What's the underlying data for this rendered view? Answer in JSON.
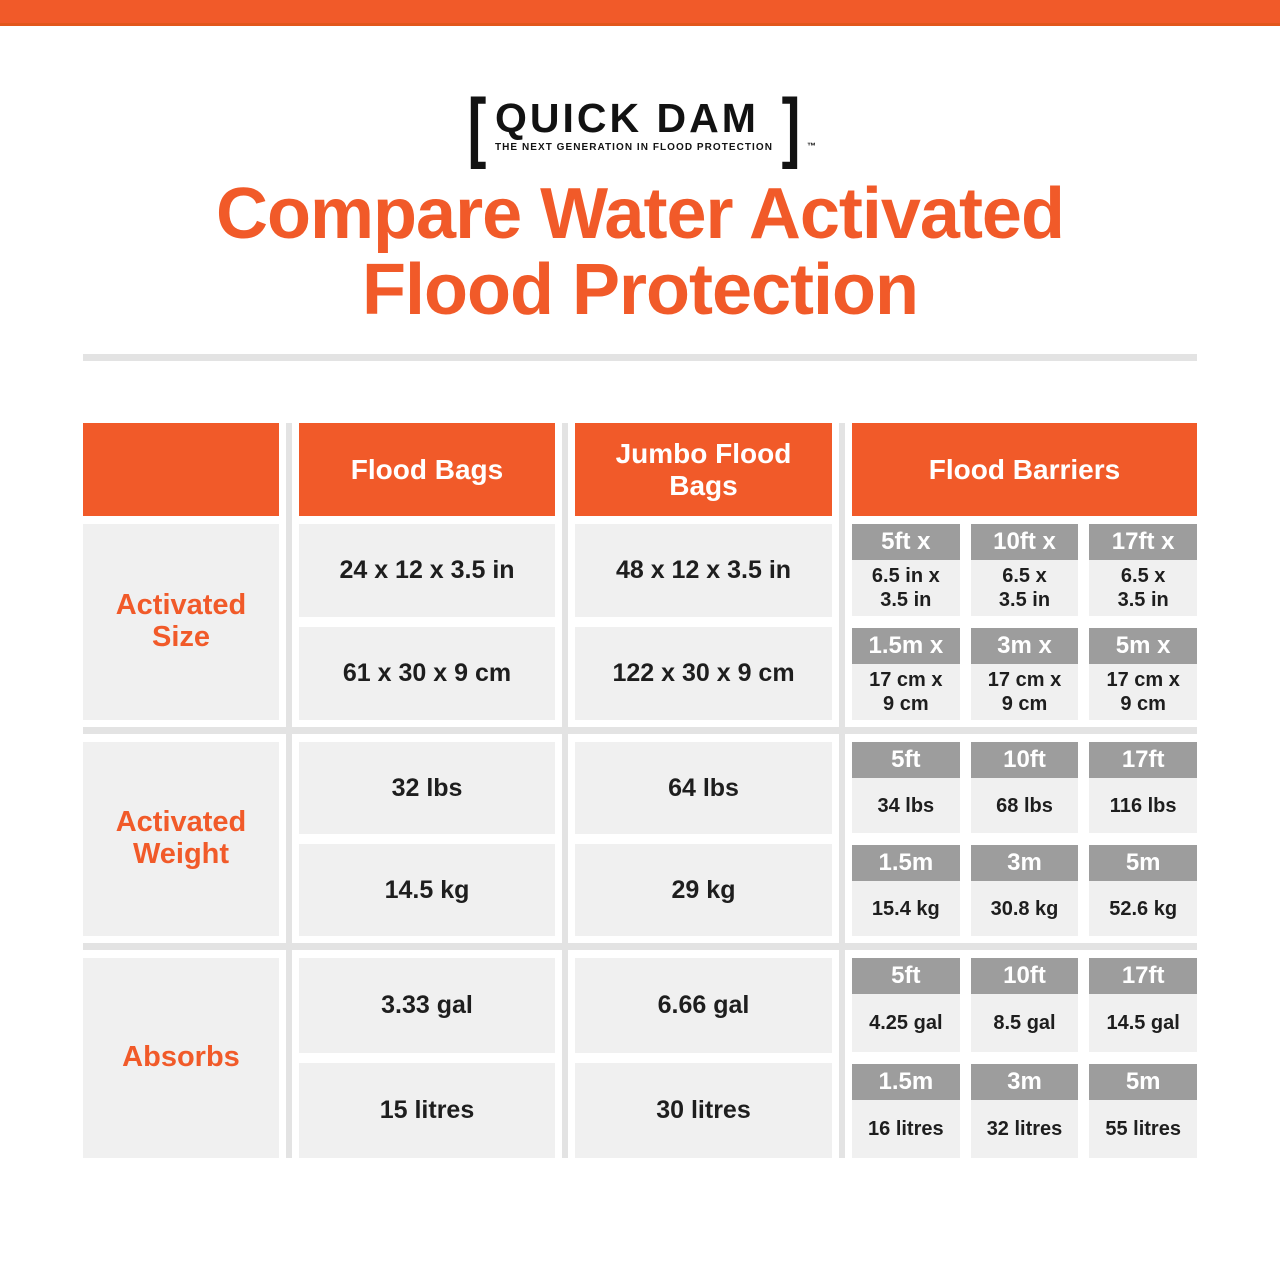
{
  "colors": {
    "orange": "#F15A29",
    "gray_header": "#9D9D9D",
    "cell_bg": "#F0F0F0",
    "divider": "#E3E3E3",
    "text_dark": "#1E1E1E"
  },
  "logo": {
    "bracket_left": "[",
    "name": "QUICK DAM",
    "bracket_right": "]",
    "tagline": "THE NEXT GENERATION IN FLOOD PROTECTION",
    "trademark": "™"
  },
  "title": {
    "line1": "Compare Water Activated",
    "line2": "Flood Protection"
  },
  "table": {
    "header": {
      "col1": "",
      "col2": "Flood Bags",
      "col3": "Jumbo Flood Bags",
      "col4": "Flood Barriers"
    },
    "rows": [
      {
        "label_lines": [
          "Activated",
          "Size"
        ],
        "flood_bags": {
          "imperial": "24 x 12 x 3.5 in",
          "metric": "61 x 30 x 9 cm"
        },
        "jumbo_flood_bags": {
          "imperial": "48 x 12 x 3.5 in",
          "metric": "122 x 30 x 9 cm"
        },
        "flood_barriers": {
          "imperial": [
            {
              "size": "5ft x",
              "line1": "6.5 in x",
              "line2": "3.5 in"
            },
            {
              "size": "10ft x",
              "line1": "6.5 x",
              "line2": "3.5 in"
            },
            {
              "size": "17ft x",
              "line1": "6.5 x",
              "line2": "3.5 in"
            }
          ],
          "metric": [
            {
              "size": "1.5m x",
              "line1": "17 cm x",
              "line2": "9 cm"
            },
            {
              "size": "3m x",
              "line1": "17 cm x",
              "line2": "9 cm"
            },
            {
              "size": "5m x",
              "line1": "17 cm x",
              "line2": "9 cm"
            }
          ]
        }
      },
      {
        "label_lines": [
          "Activated",
          "Weight"
        ],
        "flood_bags": {
          "imperial": "32 lbs",
          "metric": "14.5 kg"
        },
        "jumbo_flood_bags": {
          "imperial": "64 lbs",
          "metric": "29 kg"
        },
        "flood_barriers": {
          "imperial": [
            {
              "size": "5ft",
              "line1": "34 lbs"
            },
            {
              "size": "10ft",
              "line1": "68 lbs"
            },
            {
              "size": "17ft",
              "line1": "116 lbs"
            }
          ],
          "metric": [
            {
              "size": "1.5m",
              "line1": "15.4 kg"
            },
            {
              "size": "3m",
              "line1": "30.8 kg"
            },
            {
              "size": "5m",
              "line1": "52.6 kg"
            }
          ]
        }
      },
      {
        "label_lines": [
          "Absorbs"
        ],
        "flood_bags": {
          "imperial": "3.33 gal",
          "metric": "15 litres"
        },
        "jumbo_flood_bags": {
          "imperial": "6.66 gal",
          "metric": "30 litres"
        },
        "flood_barriers": {
          "imperial": [
            {
              "size": "5ft",
              "line1": "4.25 gal"
            },
            {
              "size": "10ft",
              "line1": "8.5 gal"
            },
            {
              "size": "17ft",
              "line1": "14.5 gal"
            }
          ],
          "metric": [
            {
              "size": "1.5m",
              "line1": "16 litres"
            },
            {
              "size": "3m",
              "line1": "32 litres"
            },
            {
              "size": "5m",
              "line1": "55 litres"
            }
          ]
        }
      }
    ]
  },
  "chart_data": {
    "type": "table",
    "title": "Compare Water Activated Flood Protection",
    "columns": [
      "Flood Bags",
      "Jumbo Flood Bags",
      "Flood Barriers 5ft/1.5m",
      "Flood Barriers 10ft/3m",
      "Flood Barriers 17ft/5m"
    ],
    "rows": [
      {
        "metric": "Activated Size (imperial)",
        "values": [
          "24 x 12 x 3.5 in",
          "48 x 12 x 3.5 in",
          "5ft x 6.5 in x 3.5 in",
          "10ft x 6.5 x 3.5 in",
          "17ft x 6.5 x 3.5 in"
        ]
      },
      {
        "metric": "Activated Size (metric)",
        "values": [
          "61 x 30 x 9 cm",
          "122 x 30 x 9 cm",
          "1.5m x 17 cm x 9 cm",
          "3m x 17 cm x 9 cm",
          "5m x 17 cm x 9 cm"
        ]
      },
      {
        "metric": "Activated Weight (imperial)",
        "values": [
          "32 lbs",
          "64 lbs",
          "34 lbs",
          "68 lbs",
          "116 lbs"
        ]
      },
      {
        "metric": "Activated Weight (metric)",
        "values": [
          "14.5 kg",
          "29 kg",
          "15.4 kg",
          "30.8 kg",
          "52.6 kg"
        ]
      },
      {
        "metric": "Absorbs (imperial)",
        "values": [
          "3.33 gal",
          "6.66 gal",
          "4.25 gal",
          "8.5 gal",
          "14.5 gal"
        ]
      },
      {
        "metric": "Absorbs (metric)",
        "values": [
          "15 litres",
          "30 litres",
          "16 litres",
          "32 litres",
          "55 litres"
        ]
      }
    ]
  }
}
